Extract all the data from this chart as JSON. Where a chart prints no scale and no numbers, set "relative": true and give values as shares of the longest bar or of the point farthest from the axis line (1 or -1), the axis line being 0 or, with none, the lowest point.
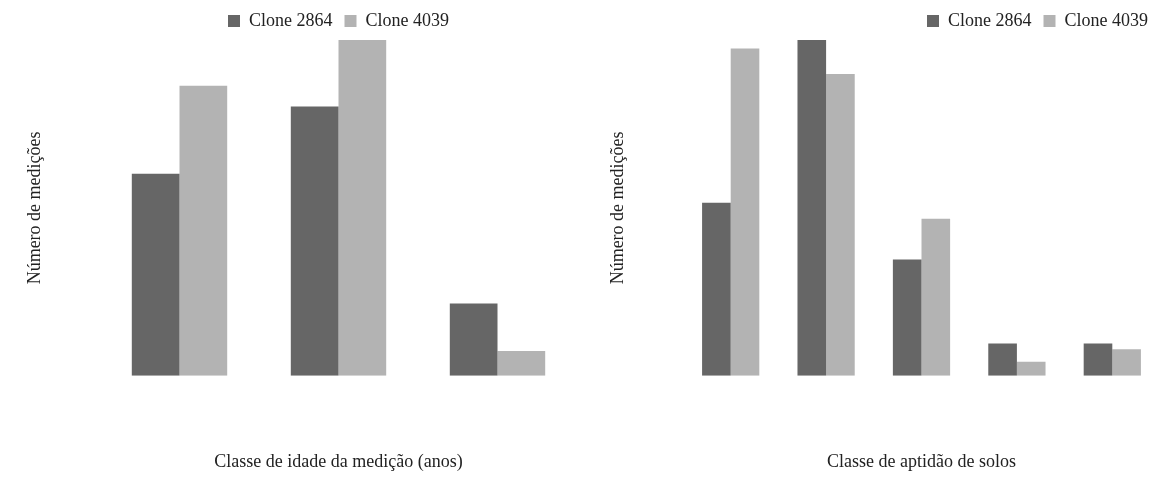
{
  "chart_data": [
    {
      "type": "bar",
      "relative": true,
      "xlabel": "Classe de idade da medição (anos)",
      "ylabel": "Número de medições",
      "categories": [
        null,
        null,
        null
      ],
      "legend": "top",
      "series": [
        {
          "name": "Clone 2864",
          "color": "#666666",
          "values": [
            0.602,
            0.802,
            0.215
          ]
        },
        {
          "name": "Clone 4039",
          "color": "#b3b3b3",
          "values": [
            0.864,
            1,
            0.074
          ]
        }
      ]
    },
    {
      "type": "bar",
      "relative": true,
      "xlabel": "Classe de aptidão de solos",
      "ylabel": "Número de medições",
      "categories": [
        null,
        null,
        null,
        null,
        null
      ],
      "legend": "top right",
      "series": [
        {
          "name": "Clone 2864",
          "color": "#666666",
          "values": [
            0.515,
            1,
            0.346,
            0.096,
            0.096
          ]
        },
        {
          "name": "Clone 4039",
          "color": "#b3b3b3",
          "values": [
            0.975,
            0.899,
            0.468,
            0.042,
            0.079
          ]
        }
      ]
    }
  ]
}
